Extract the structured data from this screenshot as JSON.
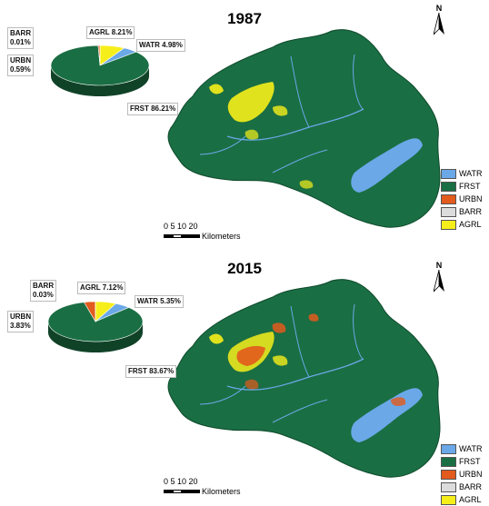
{
  "legend_colors": {
    "WATR": "#6aa8e8",
    "FRST": "#1a6e43",
    "URBN": "#e25a1c",
    "BARR": "#dcdcdc",
    "AGRL": "#f6ee1a"
  },
  "panels": [
    {
      "year": "1987",
      "pie": [
        {
          "key": "AGRL",
          "label": "AGRL 8.21%",
          "value": 8.21
        },
        {
          "key": "WATR",
          "label": "WATR 4.98%",
          "value": 4.98
        },
        {
          "key": "FRST",
          "label": "FRST 86.21%",
          "value": 86.21
        },
        {
          "key": "URBN",
          "label": "URBN\n0.59%",
          "value": 0.59
        },
        {
          "key": "BARR",
          "label": "BARR\n0.01%",
          "value": 0.01
        }
      ],
      "legend": [
        "WATR",
        "FRST",
        "URBN",
        "BARR",
        "AGRL"
      ],
      "north": "N",
      "scale": {
        "ticks": "0 5 10    20",
        "unit": "Kilometers"
      }
    },
    {
      "year": "2015",
      "pie": [
        {
          "key": "AGRL",
          "label": "AGRL 7.12%",
          "value": 7.12
        },
        {
          "key": "WATR",
          "label": "WATR 5.35%",
          "value": 5.35
        },
        {
          "key": "FRST",
          "label": "FRST 83.67%",
          "value": 83.67
        },
        {
          "key": "URBN",
          "label": "URBN\n3.83%",
          "value": 3.83
        },
        {
          "key": "BARR",
          "label": "BARR\n0.03%",
          "value": 0.03
        }
      ],
      "legend": [
        "WATR",
        "FRST",
        "URBN",
        "BARR",
        "AGRL"
      ],
      "north": "N",
      "scale": {
        "ticks": "0 5 10    20",
        "unit": "Kilometers"
      }
    }
  ]
}
